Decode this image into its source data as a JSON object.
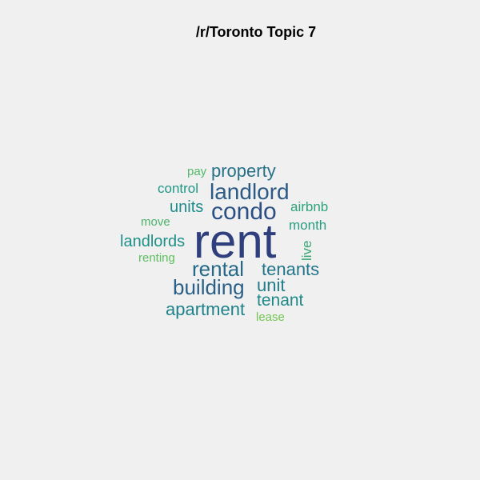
{
  "title": "/r/Toronto Topic 7",
  "words": {
    "rent": {
      "text": "rent",
      "color": "#2f3f7d"
    },
    "condo": {
      "text": "condo",
      "color": "#2c4f84"
    },
    "landlord": {
      "text": "landlord",
      "color": "#2c5a86"
    },
    "building": {
      "text": "building",
      "color": "#2a5f88"
    },
    "rental": {
      "text": "rental",
      "color": "#266887"
    },
    "property": {
      "text": "property",
      "color": "#277089"
    },
    "tenants": {
      "text": "tenants",
      "color": "#23758b"
    },
    "unit": {
      "text": "unit",
      "color": "#217b89"
    },
    "apartment": {
      "text": "apartment",
      "color": "#1f828a"
    },
    "tenant": {
      "text": "tenant",
      "color": "#1e8989"
    },
    "landlords": {
      "text": "landlords",
      "color": "#1e9088"
    },
    "units": {
      "text": "units",
      "color": "#1f8b8c"
    },
    "control": {
      "text": "control",
      "color": "#1f9686"
    },
    "month": {
      "text": "month",
      "color": "#2a9d80"
    },
    "airbnb": {
      "text": "airbnb",
      "color": "#2fa27c"
    },
    "live": {
      "text": "live",
      "color": "#38a676"
    },
    "move": {
      "text": "move",
      "color": "#4bb36b"
    },
    "pay": {
      "text": "pay",
      "color": "#52b968"
    },
    "renting": {
      "text": "renting",
      "color": "#5fbf60"
    },
    "lease": {
      "text": "lease",
      "color": "#74c653"
    }
  }
}
